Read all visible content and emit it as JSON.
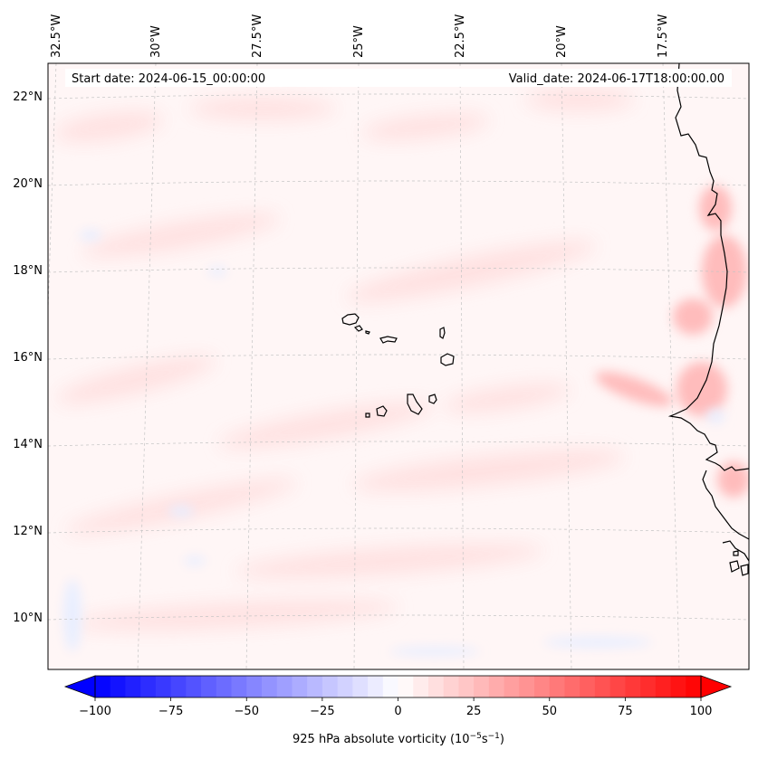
{
  "map": {
    "projection_note": "Lambert-style regional view, eastern Atlantic / Cape Verde",
    "lon_labels": [
      "32.5°W",
      "30°W",
      "27.5°W",
      "25°W",
      "22.5°W",
      "20°W",
      "17.5°W"
    ],
    "lat_labels": [
      "22°N",
      "20°N",
      "18°N",
      "16°N",
      "14°N",
      "12°N",
      "10°N"
    ],
    "start_date": "Start date: 2024-06-15_00:00:00",
    "valid_date": "Valid_date: 2024-06-17T18:00:00.00",
    "features": [
      "cape-verde-islands",
      "west-african-coastline"
    ]
  },
  "colorbar": {
    "min": -100,
    "max": 100,
    "step": 5,
    "tick_labels": [
      "−100",
      "−75",
      "−50",
      "−25",
      "0",
      "25",
      "50",
      "75",
      "100"
    ],
    "label_main": "925 hPa absolute vorticity (10",
    "label_exp1": "−5",
    "label_mid": "s",
    "label_exp2": "−1",
    "label_end": ")",
    "low_color": "#0000ff",
    "high_color": "#ff0000",
    "mid_color": "#ffffff"
  }
}
